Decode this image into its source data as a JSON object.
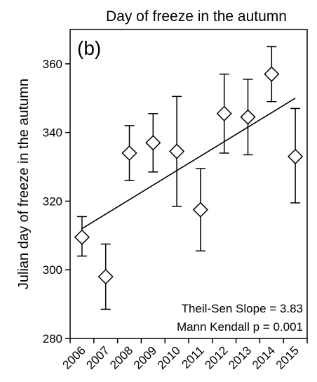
{
  "chart_data": {
    "type": "scatter",
    "title": "Day of freeze in the autumn",
    "panel_label": "(b)",
    "xlabel": "",
    "ylabel": "Julian day of freeze in the autumn",
    "ylim": [
      280,
      370
    ],
    "yticks": [
      280,
      300,
      320,
      340,
      360
    ],
    "categories": [
      "2006",
      "2007",
      "2008",
      "2009",
      "2010",
      "2011",
      "2012",
      "2013",
      "2014",
      "2015"
    ],
    "series": [
      {
        "values": [
          309.5,
          298,
          334,
          337,
          334.5,
          317.5,
          345.5,
          344.5,
          357,
          333
        ],
        "error_low": [
          304,
          288.5,
          326,
          328.5,
          318.5,
          305.5,
          334,
          333.5,
          349,
          319.5
        ],
        "error_high": [
          315.5,
          307.5,
          342,
          345.5,
          350.5,
          329.5,
          357,
          355.5,
          365,
          347
        ]
      }
    ],
    "trend_line": {
      "start": 312,
      "end": 350
    },
    "annotations": [
      "Theil-Sen Slope = 3.83",
      "Mann Kendall p = 0.001"
    ],
    "grid": false,
    "legend": "none"
  }
}
